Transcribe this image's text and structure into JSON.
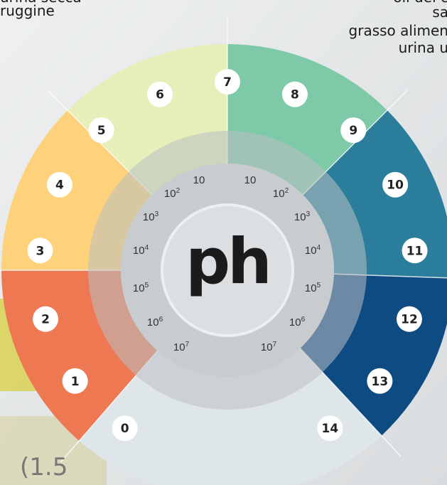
{
  "top_left_text": [
    "urina secca",
    "ruggine"
  ],
  "top_right_text": [
    "oli dei c",
    "sa",
    "grasso alimen",
    "urina u"
  ],
  "ph_scale": [
    "0",
    "1",
    "2",
    "3",
    "4",
    "5",
    "6",
    "7",
    "8",
    "9",
    "10",
    "11",
    "12",
    "13",
    "14"
  ],
  "concentration_left": [
    {
      "base": "10"
    },
    {
      "base": "10",
      "exp": "2"
    },
    {
      "base": "10",
      "exp": "3"
    },
    {
      "base": "10",
      "exp": "4"
    },
    {
      "base": "10",
      "exp": "5"
    },
    {
      "base": "10",
      "exp": "6"
    },
    {
      "base": "10",
      "exp": "7"
    }
  ],
  "concentration_right": [
    {
      "base": "10"
    },
    {
      "base": "10",
      "exp": "2"
    },
    {
      "base": "10",
      "exp": "3"
    },
    {
      "base": "10",
      "exp": "4"
    },
    {
      "base": "10",
      "exp": "5"
    },
    {
      "base": "10",
      "exp": "6"
    },
    {
      "base": "10",
      "exp": "7"
    }
  ],
  "center_label": "ph",
  "corner_text": "(1.5"
}
